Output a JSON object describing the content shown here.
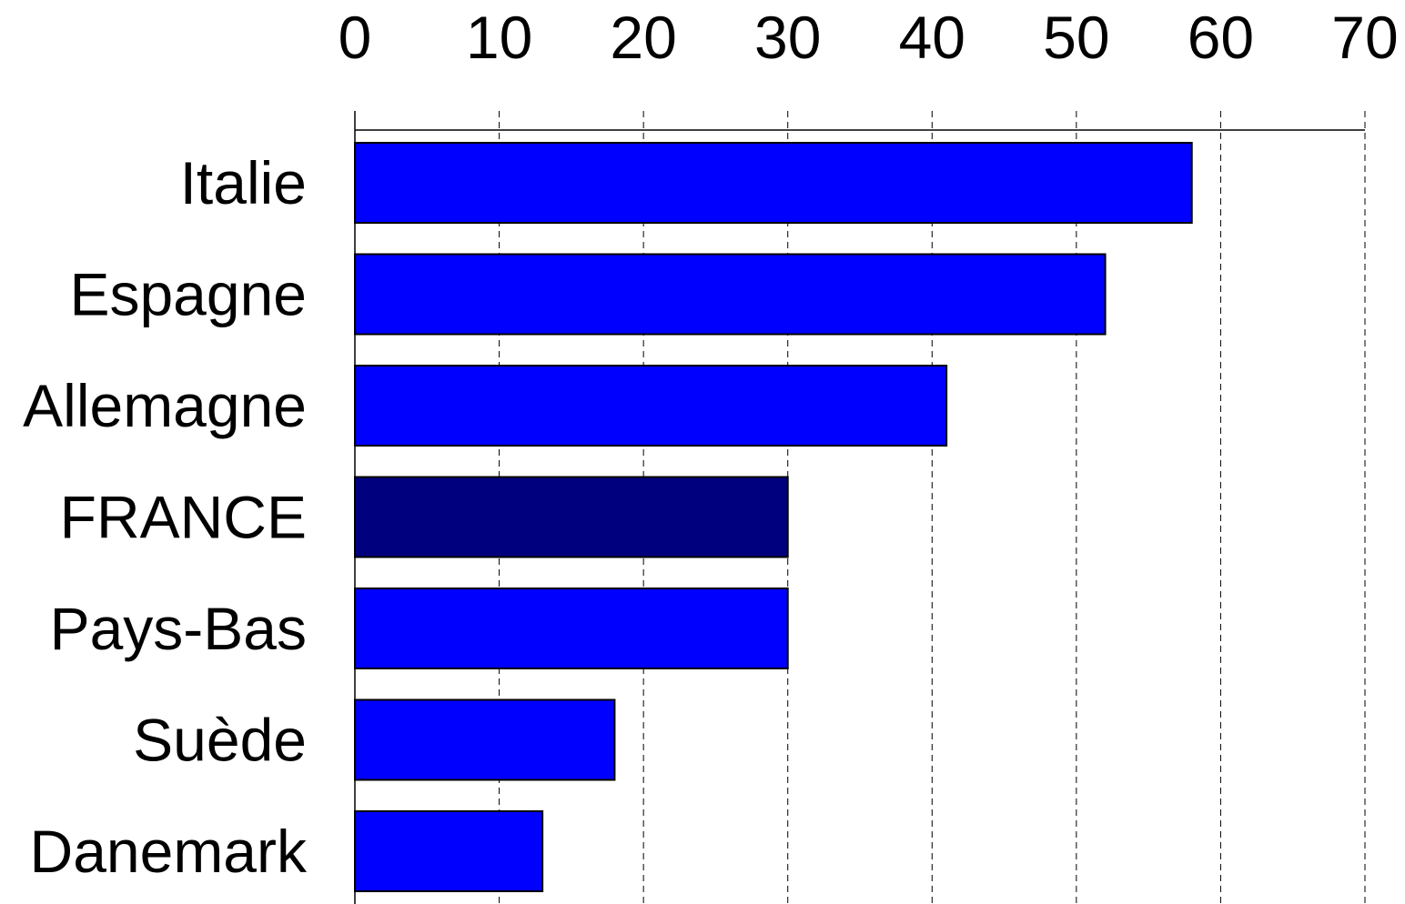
{
  "chart_data": {
    "type": "bar",
    "orientation": "horizontal",
    "title": "",
    "xlabel": "",
    "ylabel": "",
    "categories": [
      "Italie",
      "Espagne",
      "Allemagne",
      "FRANCE",
      "Pays-Bas",
      "Suède",
      "Danemark"
    ],
    "values": [
      58,
      52,
      41,
      30,
      30,
      18,
      13
    ],
    "xlim": [
      0,
      70
    ],
    "ticks": [
      0,
      10,
      20,
      30,
      40,
      50,
      60,
      70
    ],
    "tick_labels": [
      "0",
      "10",
      "20",
      "30",
      "40",
      "50",
      "60",
      "70"
    ],
    "axis_position": "top",
    "grid": "vertical-dashed",
    "legend": "none",
    "colors": {
      "default": "#0000ff",
      "highlight": "#00007f",
      "highlight_category": "FRANCE"
    }
  }
}
